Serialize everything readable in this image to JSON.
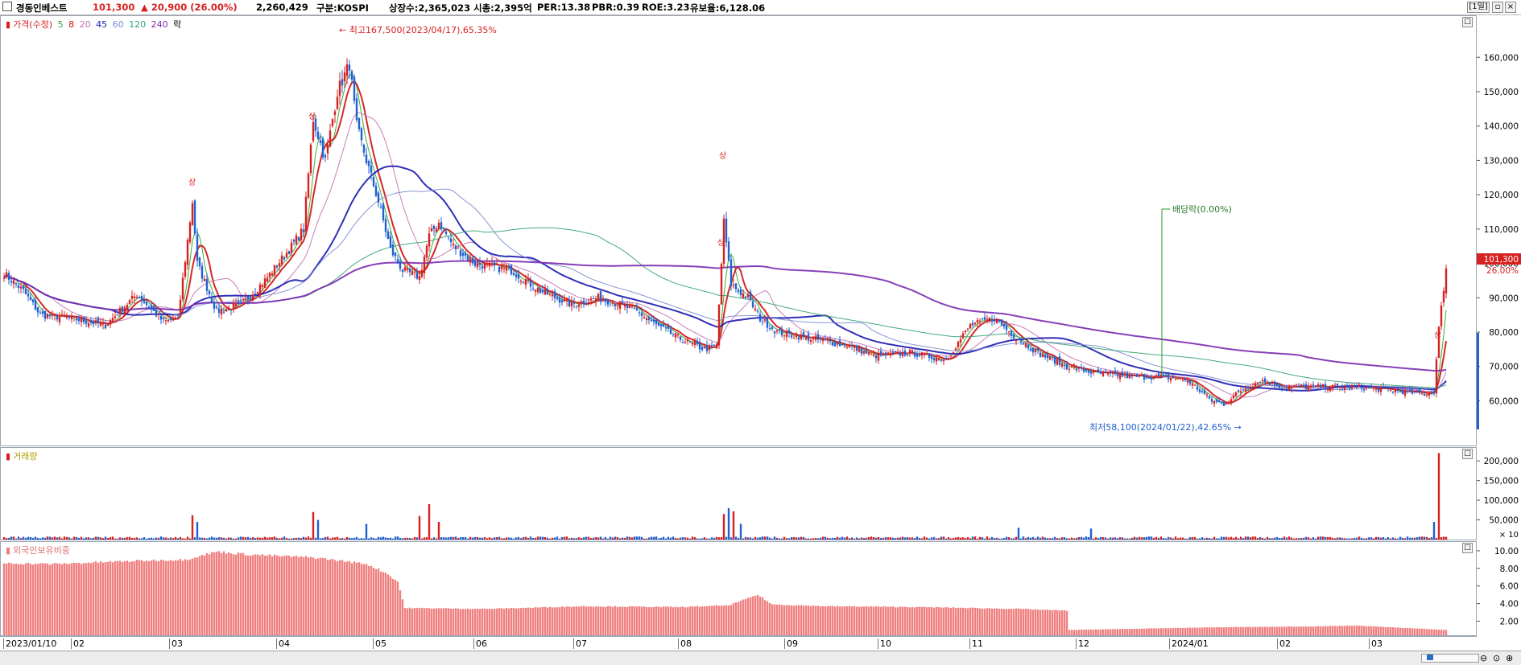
{
  "header": {
    "name": "경동인베스트",
    "price": "101,300",
    "change": "▲ 20,900 (26.00%)",
    "volume": "2,260,429",
    "market": "구분:KOSPI",
    "listed": "상장수:2,365,023",
    "mcap": "시총:2,395억",
    "per": "PER:13.38",
    "pbr": "PBR:0.39",
    "roe": "ROE:3.23",
    "float": "유보율:6,128.06",
    "period": "[1일]"
  },
  "price_legend": {
    "label": "가격(수정)",
    "ma": [
      {
        "label": "5",
        "color": "#27a427"
      },
      {
        "label": "8",
        "color": "#d01010"
      },
      {
        "label": "20",
        "color": "#c070b0"
      },
      {
        "label": "45",
        "color": "#1a1ab0"
      },
      {
        "label": "60",
        "color": "#7a8ad0"
      },
      {
        "label": "120",
        "color": "#30a070"
      },
      {
        "label": "240",
        "color": "#7a2ab0"
      }
    ],
    "extra": "락"
  },
  "volume_legend": "거래량",
  "foreign_legend": "외국인보유비중",
  "annotations": {
    "high": "최고167,500(2023/04/17),65.35%",
    "low": "최저58,100(2024/01/22),42.65%",
    "dividend": "배당락(0.00%)",
    "upper_limit": "상"
  },
  "current": {
    "price_tag": "101,300",
    "pct_tag": "26.00%"
  },
  "colors": {
    "up": "#d82020",
    "down": "#2060d0",
    "foreign": "#f08080"
  },
  "chart_data": [
    {
      "type": "candlestick",
      "title": "",
      "y_ticks": [
        "160,000",
        "150,000",
        "140,000",
        "130,000",
        "120,000",
        "110,000",
        "100,000",
        "90,000",
        "80,000",
        "70,000",
        "60,000"
      ],
      "ylim": [
        47000,
        172000
      ],
      "x_ticks": [
        "2023/01/10",
        "02",
        "03",
        "04",
        "05",
        "06",
        "07",
        "08",
        "09",
        "10",
        "11",
        "12",
        "2024/01",
        "02",
        "03"
      ],
      "anchors": [
        [
          0,
          97000
        ],
        [
          8,
          92000
        ],
        [
          15,
          85000
        ],
        [
          28,
          84000
        ],
        [
          42,
          82000
        ],
        [
          55,
          91000
        ],
        [
          66,
          83000
        ],
        [
          72,
          84000
        ],
        [
          78,
          118000
        ],
        [
          80,
          100000
        ],
        [
          88,
          86000
        ],
        [
          98,
          88000
        ],
        [
          108,
          95000
        ],
        [
          118,
          104000
        ],
        [
          124,
          110000
        ],
        [
          128,
          142000
        ],
        [
          133,
          130000
        ],
        [
          138,
          150000
        ],
        [
          143,
          158000
        ],
        [
          146,
          140000
        ],
        [
          150,
          130000
        ],
        [
          155,
          118000
        ],
        [
          160,
          104000
        ],
        [
          165,
          98000
        ],
        [
          172,
          96000
        ],
        [
          176,
          108000
        ],
        [
          180,
          112000
        ],
        [
          186,
          105000
        ],
        [
          195,
          100000
        ],
        [
          210,
          98000
        ],
        [
          222,
          92000
        ],
        [
          235,
          88000
        ],
        [
          246,
          90000
        ],
        [
          255,
          88000
        ],
        [
          262,
          86000
        ],
        [
          270,
          82000
        ],
        [
          280,
          78000
        ],
        [
          290,
          75000
        ],
        [
          295,
          76000
        ],
        [
          298,
          112000
        ],
        [
          301,
          94000
        ],
        [
          304,
          92000
        ],
        [
          308,
          90000
        ],
        [
          313,
          84000
        ],
        [
          320,
          80000
        ],
        [
          335,
          78000
        ],
        [
          350,
          76000
        ],
        [
          360,
          73000
        ],
        [
          375,
          74000
        ],
        [
          390,
          72000
        ],
        [
          400,
          82000
        ],
        [
          410,
          84000
        ],
        [
          418,
          79000
        ],
        [
          428,
          74000
        ],
        [
          440,
          70000
        ],
        [
          452,
          68000
        ],
        [
          468,
          67000
        ],
        [
          480,
          67000
        ],
        [
          490,
          66000
        ],
        [
          500,
          60000
        ],
        [
          505,
          59000
        ],
        [
          512,
          63000
        ],
        [
          520,
          66000
        ],
        [
          530,
          64000
        ],
        [
          545,
          64000
        ],
        [
          560,
          64000
        ],
        [
          575,
          63000
        ],
        [
          588,
          62000
        ],
        [
          592,
          63000
        ],
        [
          594,
          81000
        ],
        [
          597,
          99000
        ]
      ],
      "moving_averages": [
        {
          "label": "5",
          "color": "#27a427"
        },
        {
          "label": "8",
          "color": "#d01010"
        },
        {
          "label": "20",
          "color": "#c070b0"
        },
        {
          "label": "45",
          "color": "#1a1ab0"
        },
        {
          "label": "60",
          "color": "#7a8ad0"
        },
        {
          "label": "120",
          "color": "#30a070"
        },
        {
          "label": "240",
          "color": "#7a2ab0"
        }
      ]
    },
    {
      "type": "bar",
      "title": "",
      "y_ticks": [
        "200,000",
        "150,000",
        "100,000",
        "50,000"
      ],
      "y_unit": "× 10",
      "ylim": [
        0,
        225000
      ],
      "spikes": [
        [
          78,
          62000
        ],
        [
          80,
          45000
        ],
        [
          128,
          70000
        ],
        [
          130,
          50000
        ],
        [
          150,
          40000
        ],
        [
          172,
          60000
        ],
        [
          176,
          90000
        ],
        [
          180,
          45000
        ],
        [
          298,
          65000
        ],
        [
          300,
          80000
        ],
        [
          302,
          72000
        ],
        [
          305,
          40000
        ],
        [
          420,
          30000
        ],
        [
          450,
          28000
        ],
        [
          592,
          45000
        ],
        [
          594,
          220000
        ]
      ],
      "baseline": 6000
    },
    {
      "type": "bar",
      "title": "",
      "y_ticks": [
        "10.00",
        "8.00",
        "6.00",
        "4.00",
        "2.00"
      ],
      "ylim": [
        0.4,
        11.0
      ],
      "anchors": [
        [
          0,
          8.6
        ],
        [
          20,
          8.5
        ],
        [
          40,
          8.7
        ],
        [
          60,
          8.9
        ],
        [
          75,
          9.0
        ],
        [
          88,
          9.9
        ],
        [
          100,
          9.6
        ],
        [
          130,
          9.2
        ],
        [
          150,
          8.5
        ],
        [
          158,
          7.5
        ],
        [
          163,
          6.5
        ],
        [
          166,
          3.5
        ],
        [
          200,
          3.4
        ],
        [
          240,
          3.7
        ],
        [
          280,
          3.6
        ],
        [
          300,
          3.8
        ],
        [
          312,
          5.0
        ],
        [
          318,
          3.9
        ],
        [
          340,
          3.7
        ],
        [
          380,
          3.6
        ],
        [
          420,
          3.4
        ],
        [
          440,
          3.2
        ],
        [
          441,
          1.0
        ],
        [
          500,
          1.3
        ],
        [
          540,
          1.4
        ],
        [
          560,
          1.5
        ],
        [
          597,
          1.0
        ]
      ]
    }
  ]
}
